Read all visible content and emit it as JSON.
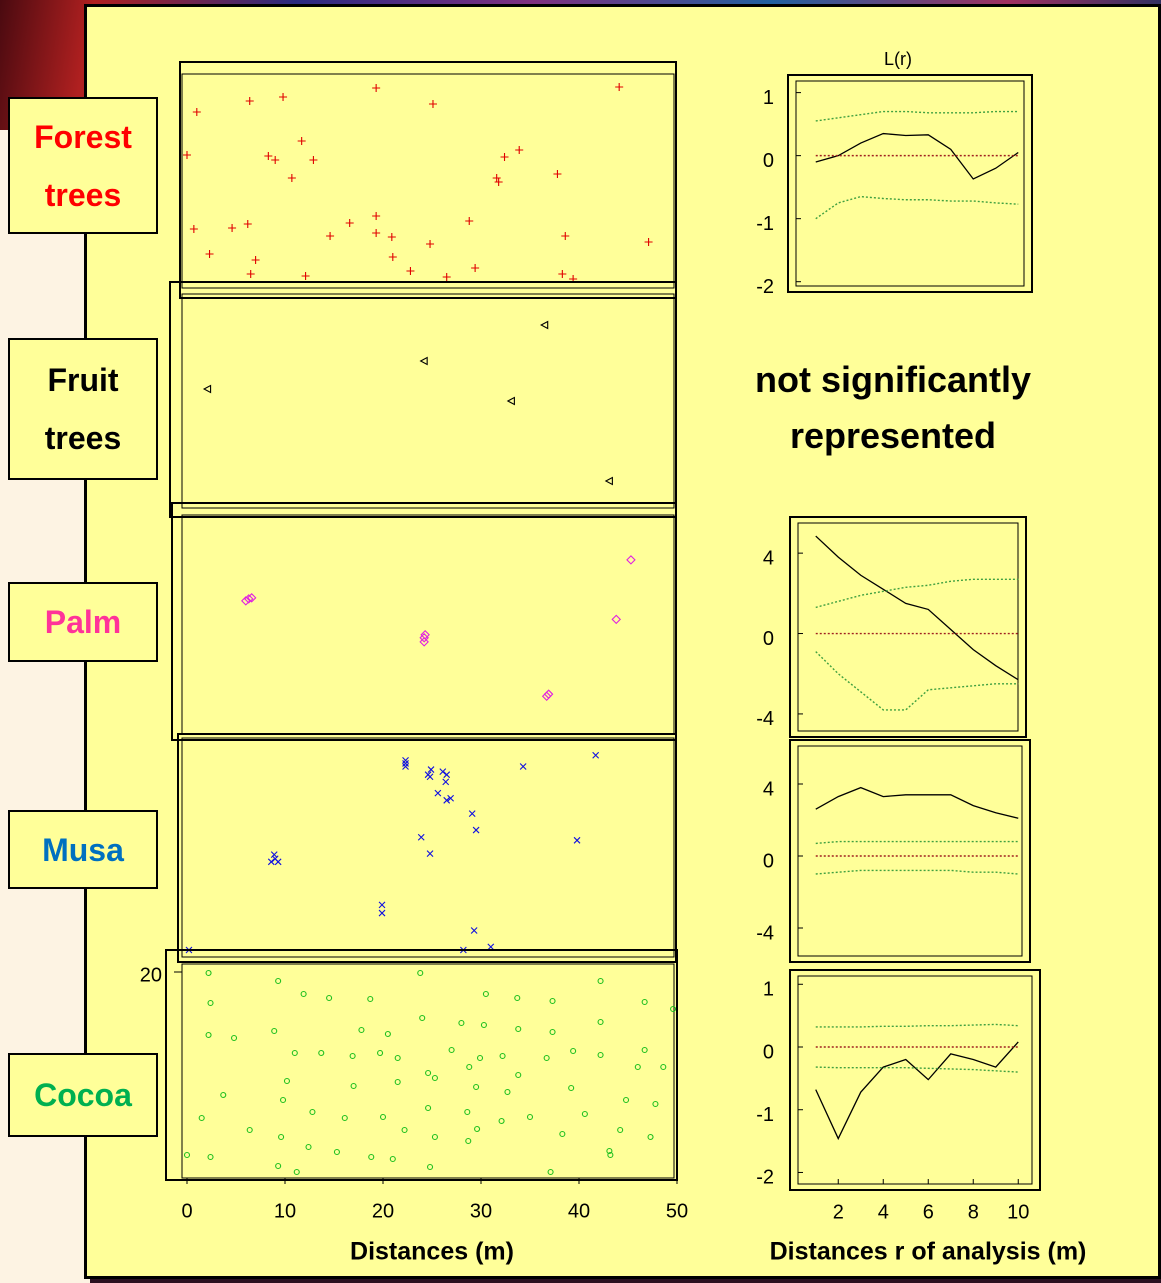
{
  "chart_data": [
    {
      "type": "scatter",
      "xlim": [
        0,
        50
      ],
      "ylim": [
        0,
        20
      ],
      "series": [
        {
          "name": "Forest trees",
          "name_color": "#ff0000",
          "color": "#e00000",
          "marker": "+",
          "x": [
            1.0,
            6.4,
            9.8,
            19.3,
            25.1,
            44.1,
            0.0,
            8.3,
            9.0,
            11.7,
            12.9,
            10.7,
            32.4,
            33.9,
            31.6,
            31.8,
            37.8,
            0.7,
            2.3,
            4.6,
            6.2,
            7.0,
            6.5,
            12.1,
            14.6,
            16.6,
            19.3,
            19.3,
            20.9,
            21.0,
            22.8,
            24.8,
            26.5,
            28.8,
            29.4,
            38.6,
            38.3,
            39.4,
            47.1
          ],
          "values": [
            17.0,
            18.1,
            18.5,
            19.4,
            17.8,
            19.5,
            12.7,
            12.6,
            12.2,
            14.1,
            12.2,
            10.4,
            12.5,
            13.2,
            10.4,
            10.0,
            10.8,
            5.3,
            2.8,
            5.4,
            5.8,
            2.2,
            0.8,
            0.6,
            4.6,
            5.9,
            6.6,
            4.9,
            4.5,
            2.5,
            1.1,
            3.8,
            0.5,
            6.1,
            1.4,
            4.6,
            0.8,
            0.3,
            4.0
          ]
        }
      ]
    },
    {
      "type": "scatter",
      "xlim": [
        0,
        50
      ],
      "ylim": [
        0,
        20
      ],
      "annotation": "not significantly represented",
      "series": [
        {
          "name": "Fruit trees",
          "name_color": "#000000",
          "color": "#000000",
          "marker": "triangle",
          "x": [
            2.1,
            24.2,
            36.5,
            33.1,
            43.1
          ],
          "values": [
            11.3,
            14.1,
            17.7,
            10.1,
            2.1
          ]
        }
      ]
    },
    {
      "type": "scatter",
      "xlim": [
        0,
        50
      ],
      "ylim": [
        0,
        20
      ],
      "series": [
        {
          "name": "Palm",
          "name_color": "#ff3399",
          "color": "#e020e0",
          "marker": "diamond",
          "x": [
            6.0,
            6.3,
            6.6,
            24.2,
            24.2,
            24.3,
            36.7,
            36.9,
            45.3,
            43.8
          ],
          "values": [
            12.4,
            12.6,
            12.7,
            8.8,
            8.4,
            9.1,
            3.1,
            3.3,
            16.4,
            10.6
          ]
        }
      ]
    },
    {
      "type": "scatter",
      "xlim": [
        0,
        50
      ],
      "ylim": [
        0,
        20
      ],
      "series": [
        {
          "name": "Musa",
          "name_color": "#0070c0",
          "color": "#1010e0",
          "marker": "x",
          "x": [
            22.3,
            22.3,
            22.3,
            24.9,
            24.6,
            24.8,
            26.1,
            26.5,
            26.4,
            25.6,
            26.5,
            26.9,
            34.3,
            41.7,
            29.1,
            29.5,
            23.9,
            24.8,
            39.8,
            8.9,
            9.0,
            8.6,
            9.3,
            19.9,
            19.9,
            29.3,
            28.2,
            31.0,
            0.2
          ],
          "values": [
            18.6,
            18.3,
            18.0,
            17.7,
            17.2,
            17.0,
            17.5,
            17.2,
            16.5,
            15.4,
            14.7,
            14.9,
            18.0,
            19.1,
            13.4,
            11.8,
            11.1,
            9.5,
            10.8,
            9.4,
            9.0,
            8.7,
            8.7,
            4.5,
            3.7,
            2.0,
            0.1,
            0.4,
            0.1
          ]
        }
      ]
    },
    {
      "type": "scatter",
      "xlim": [
        0,
        50
      ],
      "ylim": [
        0,
        20
      ],
      "xticks": [
        0,
        10,
        20,
        30,
        40,
        50
      ],
      "yticks": [
        20
      ],
      "xlabel": "Distances (m)",
      "series": [
        {
          "name": "Cocoa",
          "name_color": "#00b050",
          "color": "#20c020",
          "marker": "circle",
          "x": [
            2.2,
            9.3,
            23.8,
            42.2,
            2.4,
            11.9,
            14.5,
            18.7,
            30.5,
            33.7,
            37.3,
            46.7,
            49.6,
            2.2,
            4.8,
            8.9,
            17.8,
            24.0,
            20.5,
            28.0,
            30.3,
            33.8,
            37.3,
            42.2,
            11.0,
            13.7,
            16.9,
            19.7,
            21.5,
            27.0,
            29.9,
            32.2,
            36.7,
            39.4,
            42.2,
            46.7,
            10.2,
            17.0,
            21.5,
            25.3,
            28.8,
            24.6,
            29.5,
            32.7,
            33.8,
            39.2,
            46.0,
            48.6,
            3.7,
            1.5,
            9.8,
            12.8,
            16.1,
            20.0,
            24.6,
            28.6,
            32.1,
            35.0,
            40.6,
            44.8,
            47.8,
            6.4,
            9.6,
            22.2,
            25.3,
            29.6,
            38.3,
            44.2,
            47.3,
            0.0,
            2.4,
            12.4,
            15.3,
            18.8,
            21.0,
            28.7,
            43.1,
            43.2,
            9.3,
            11.2,
            24.8,
            37.1
          ],
          "values": [
            19.9,
            19.1,
            19.9,
            19.1,
            16.9,
            17.8,
            17.4,
            17.3,
            17.8,
            17.4,
            17.1,
            17.0,
            16.3,
            13.7,
            13.4,
            14.1,
            14.2,
            15.4,
            13.8,
            14.9,
            14.7,
            14.3,
            14.0,
            15.0,
            11.9,
            11.9,
            11.6,
            11.9,
            11.4,
            12.2,
            11.4,
            11.6,
            11.4,
            12.1,
            11.7,
            12.2,
            9.1,
            8.6,
            9.0,
            9.4,
            10.5,
            9.9,
            8.5,
            8.0,
            9.7,
            8.4,
            10.5,
            10.5,
            7.7,
            5.4,
            7.2,
            6.0,
            5.4,
            5.5,
            6.4,
            6.0,
            5.1,
            5.5,
            5.8,
            7.2,
            6.8,
            4.2,
            3.5,
            4.2,
            3.5,
            4.3,
            3.8,
            4.2,
            3.5,
            1.7,
            1.5,
            2.5,
            2.0,
            1.5,
            1.3,
            3.1,
            2.1,
            1.7,
            0.6,
            0.0,
            0.5,
            0.0
          ]
        }
      ]
    },
    {
      "type": "line",
      "title": "L(r)",
      "x": [
        1,
        2,
        3,
        4,
        5,
        6,
        7,
        8,
        9,
        10
      ],
      "xlim": [
        0.3,
        10.3
      ],
      "ylim": [
        -2.1,
        1.2
      ],
      "yticks": [
        -2,
        -1,
        0,
        1
      ],
      "series": [
        {
          "color": "#000000",
          "dash": false,
          "values": [
            -0.1,
            0.0,
            0.2,
            0.35,
            0.32,
            0.33,
            0.1,
            -0.37,
            -0.2,
            0.05
          ]
        },
        {
          "color": "#40a040",
          "dash": true,
          "values": [
            0.55,
            0.6,
            0.65,
            0.7,
            0.7,
            0.68,
            0.68,
            0.68,
            0.7,
            0.7
          ]
        },
        {
          "color": "#40a040",
          "dash": true,
          "values": [
            -1.0,
            -0.75,
            -0.65,
            -0.68,
            -0.7,
            -0.7,
            -0.72,
            -0.72,
            -0.75,
            -0.77
          ]
        },
        {
          "color": "#a02020",
          "dash": true,
          "values": [
            0,
            0,
            0,
            0,
            0,
            0,
            0,
            0,
            0,
            0
          ]
        }
      ]
    },
    {
      "type": "line",
      "x": [
        1,
        2,
        3,
        4,
        5,
        6,
        7,
        8,
        9,
        10
      ],
      "xlim": [
        0.3,
        10.3
      ],
      "ylim": [
        -4.8,
        5.4
      ],
      "yticks": [
        -4,
        0,
        4
      ],
      "series": [
        {
          "color": "#000000",
          "dash": false,
          "values": [
            4.85,
            3.8,
            2.9,
            2.2,
            1.5,
            1.2,
            0.2,
            -0.8,
            -1.6,
            -2.3
          ]
        },
        {
          "color": "#40a040",
          "dash": true,
          "values": [
            1.3,
            1.6,
            1.9,
            2.1,
            2.3,
            2.4,
            2.6,
            2.7,
            2.7,
            2.7
          ]
        },
        {
          "color": "#40a040",
          "dash": true,
          "values": [
            -0.9,
            -2.0,
            -2.9,
            -3.8,
            -3.8,
            -2.8,
            -2.7,
            -2.6,
            -2.5,
            -2.5
          ]
        },
        {
          "color": "#a02020",
          "dash": true,
          "values": [
            0,
            0,
            0,
            0,
            0,
            0,
            0,
            0,
            0,
            0
          ]
        }
      ]
    },
    {
      "type": "line",
      "x": [
        1,
        2,
        3,
        4,
        5,
        6,
        7,
        8,
        9,
        10
      ],
      "xlim": [
        0.3,
        10.3
      ],
      "ylim": [
        -5.5,
        6
      ],
      "yticks": [
        -4,
        0,
        4
      ],
      "series": [
        {
          "color": "#000000",
          "dash": false,
          "values": [
            2.6,
            3.3,
            3.8,
            3.3,
            3.4,
            3.4,
            3.4,
            2.8,
            2.4,
            2.1
          ]
        },
        {
          "color": "#40a040",
          "dash": true,
          "values": [
            0.7,
            0.8,
            0.8,
            0.8,
            0.8,
            0.8,
            0.8,
            0.8,
            0.8,
            0.8
          ]
        },
        {
          "color": "#40a040",
          "dash": true,
          "values": [
            -1.0,
            -0.9,
            -0.8,
            -0.8,
            -0.8,
            -0.8,
            -0.8,
            -0.9,
            -0.9,
            -1.0
          ]
        },
        {
          "color": "#a02020",
          "dash": true,
          "values": [
            0,
            0,
            0,
            0,
            0,
            0,
            0,
            0,
            0,
            0
          ]
        }
      ]
    },
    {
      "type": "line",
      "x": [
        1,
        2,
        3,
        4,
        5,
        6,
        7,
        8,
        9,
        10
      ],
      "xlim": [
        0.3,
        10.3
      ],
      "ylim": [
        -2.2,
        1.1
      ],
      "yticks": [
        -2,
        -1,
        0,
        1
      ],
      "xticks": [
        2,
        4,
        6,
        8,
        10
      ],
      "xlabel": "Distances r of analysis  (m)",
      "series": [
        {
          "color": "#000000",
          "dash": false,
          "values": [
            -0.68,
            -1.46,
            -0.72,
            -0.32,
            -0.2,
            -0.52,
            -0.11,
            -0.2,
            -0.32,
            0.08
          ]
        },
        {
          "color": "#40a040",
          "dash": true,
          "values": [
            0.32,
            0.32,
            0.32,
            0.33,
            0.33,
            0.34,
            0.34,
            0.35,
            0.36,
            0.34
          ]
        },
        {
          "color": "#40a040",
          "dash": true,
          "values": [
            -0.32,
            -0.33,
            -0.33,
            -0.33,
            -0.33,
            -0.34,
            -0.35,
            -0.36,
            -0.38,
            -0.4
          ]
        },
        {
          "color": "#a02020",
          "dash": true,
          "values": [
            0,
            0,
            0,
            0,
            0,
            0,
            0,
            0,
            0,
            0
          ]
        }
      ]
    }
  ]
}
